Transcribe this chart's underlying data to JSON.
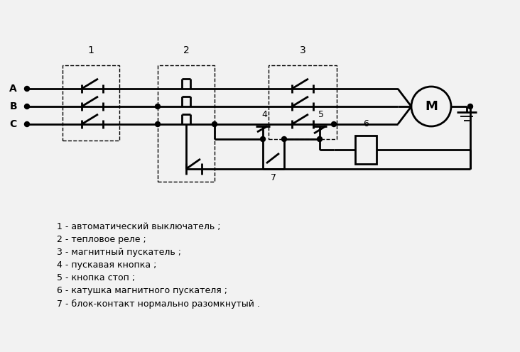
{
  "bg_color": "#f2f2f2",
  "line_color": "#000000",
  "lw": 2.0,
  "legend_lines": [
    "1 - автоматический выключатель ;",
    "2 - тепловое реле ;",
    "3 - магнитный пускатель ;",
    "4 - пускавая кнопка ;",
    "5 - кнопка стоп ;",
    "6 - катушка магнитного пускателя ;",
    "7 - блок-контакт нормально разомкнутый ."
  ]
}
